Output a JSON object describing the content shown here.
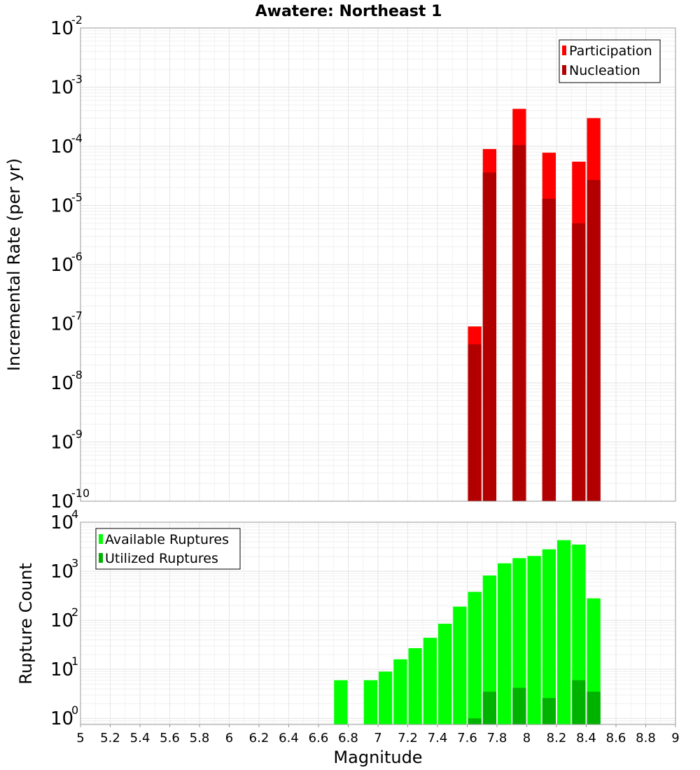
{
  "chart_data": [
    {
      "type": "bar",
      "title": "Awatere: Northeast 1",
      "ylabel": "Incremental Rate (per yr)",
      "yscale": "log",
      "ylim": [
        1e-10,
        0.01
      ],
      "xlim": [
        5,
        9
      ],
      "y_tick_labels": [
        {
          "base": "10",
          "exp": "-10"
        },
        {
          "base": "10",
          "exp": "-9"
        },
        {
          "base": "10",
          "exp": "-8"
        },
        {
          "base": "10",
          "exp": "-7"
        },
        {
          "base": "10",
          "exp": "-6"
        },
        {
          "base": "10",
          "exp": "-5"
        },
        {
          "base": "10",
          "exp": "-4"
        },
        {
          "base": "10",
          "exp": "-3"
        },
        {
          "base": "10",
          "exp": "-2"
        }
      ],
      "grid": true,
      "legend_position": "top-right",
      "legend": [
        {
          "name": "Participation",
          "color": "#ff0000"
        },
        {
          "name": "Nucleation",
          "color": "#b20000"
        }
      ],
      "x": [
        7.65,
        7.75,
        7.95,
        8.15,
        8.35,
        8.45
      ],
      "series": [
        {
          "name": "Participation",
          "color": "#ff0000",
          "values": [
            9e-08,
            9e-05,
            0.00043,
            7.8e-05,
            5.5e-05,
            0.0003
          ]
        },
        {
          "name": "Nucleation",
          "color": "#b20000",
          "values": [
            4.5e-08,
            3.6e-05,
            0.000105,
            1.3e-05,
            5e-06,
            2.7e-05
          ]
        }
      ]
    },
    {
      "type": "bar",
      "xlabel": "Magnitude",
      "ylabel": "Rupture Count",
      "yscale": "log",
      "ylim": [
        0.75,
        10000
      ],
      "xlim": [
        5,
        9
      ],
      "y_tick_labels": [
        {
          "base": "10",
          "exp": "0"
        },
        {
          "base": "10",
          "exp": "1"
        },
        {
          "base": "10",
          "exp": "2"
        },
        {
          "base": "10",
          "exp": "3"
        },
        {
          "base": "10",
          "exp": "4"
        }
      ],
      "x_ticks": [
        "5",
        "5.2",
        "5.4",
        "5.6",
        "5.8",
        "6",
        "6.2",
        "6.4",
        "6.6",
        "6.8",
        "7",
        "7.2",
        "7.4",
        "7.6",
        "7.8",
        "8",
        "8.2",
        "8.4",
        "8.6",
        "8.8",
        "9"
      ],
      "grid": true,
      "legend_position": "top-left",
      "legend": [
        {
          "name": "Available Ruptures",
          "color": "#00ff00"
        },
        {
          "name": "Utilized Ruptures",
          "color": "#00b200"
        }
      ],
      "x": [
        6.75,
        6.95,
        7.05,
        7.15,
        7.25,
        7.35,
        7.45,
        7.55,
        7.65,
        7.75,
        7.85,
        7.95,
        8.05,
        8.15,
        8.25,
        8.35,
        8.45
      ],
      "series": [
        {
          "name": "Available Ruptures",
          "color": "#00ff00",
          "values": [
            6,
            6,
            9,
            16,
            27,
            44,
            85,
            190,
            380,
            820,
            1450,
            1850,
            2050,
            2800,
            4300,
            3500,
            280
          ]
        },
        {
          "name": "Utilized Ruptures",
          "color": "#00b200",
          "values": [
            0,
            0,
            0,
            0,
            0,
            0,
            0,
            0,
            1,
            3.5,
            0,
            4.2,
            0,
            2.6,
            0,
            6,
            3.5
          ]
        }
      ]
    }
  ]
}
